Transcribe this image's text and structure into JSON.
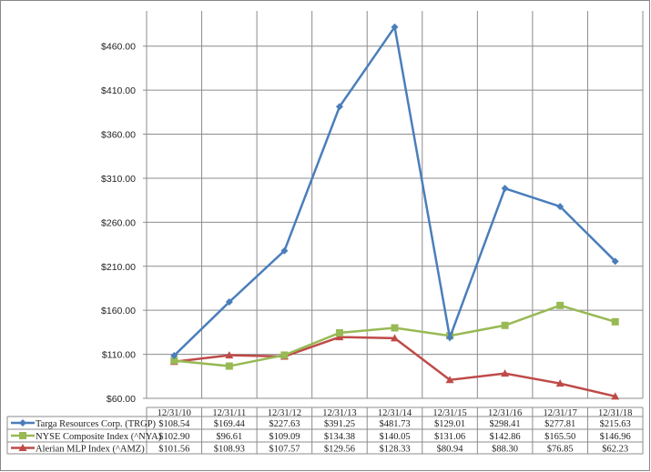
{
  "chart_data": {
    "type": "line",
    "categories": [
      "12/31/10",
      "12/31/11",
      "12/31/12",
      "12/31/13",
      "12/31/14",
      "12/31/15",
      "12/31/16",
      "12/31/17",
      "12/31/18"
    ],
    "series": [
      {
        "name": "Targa Resources Corp. (TRGP)",
        "color": "#4a7ebb",
        "marker": "diamond",
        "values": [
          108.54,
          169.44,
          227.63,
          391.25,
          481.73,
          129.01,
          298.41,
          277.81,
          215.63
        ],
        "labels": [
          "$108.54",
          "$169.44",
          "$227.63",
          "$391.25",
          "$481.73",
          "$129.01",
          "$298.41",
          "$277.81",
          "$215.63"
        ]
      },
      {
        "name": "NYSE Composite Index (^NYA)",
        "color": "#98b954",
        "marker": "square",
        "values": [
          102.9,
          96.61,
          109.09,
          134.38,
          140.05,
          131.06,
          142.86,
          165.5,
          146.96
        ],
        "labels": [
          "$102.90",
          "$96.61",
          "$109.09",
          "$134.38",
          "$140.05",
          "$131.06",
          "$142.86",
          "$165.50",
          "$146.96"
        ]
      },
      {
        "name": "Alerian MLP Index (^AMZ)",
        "color": "#be4b48",
        "marker": "triangle",
        "values": [
          101.56,
          108.93,
          107.57,
          129.56,
          128.33,
          80.94,
          88.3,
          76.85,
          62.23
        ],
        "labels": [
          "$101.56",
          "$108.93",
          "$107.57",
          "$129.56",
          "$128.33",
          "$80.94",
          "$88.30",
          "$76.85",
          "$62.23"
        ]
      }
    ],
    "yticks": [
      "$60.00",
      "$110.00",
      "$160.00",
      "$210.00",
      "$260.00",
      "$310.00",
      "$360.00",
      "$410.00",
      "$460.00"
    ],
    "ytick_values": [
      60,
      110,
      160,
      210,
      260,
      310,
      360,
      410,
      460
    ],
    "ylim": [
      60,
      500
    ],
    "grid": true,
    "legend": "data-table-bottom",
    "title": "",
    "xlabel": "",
    "ylabel": ""
  }
}
